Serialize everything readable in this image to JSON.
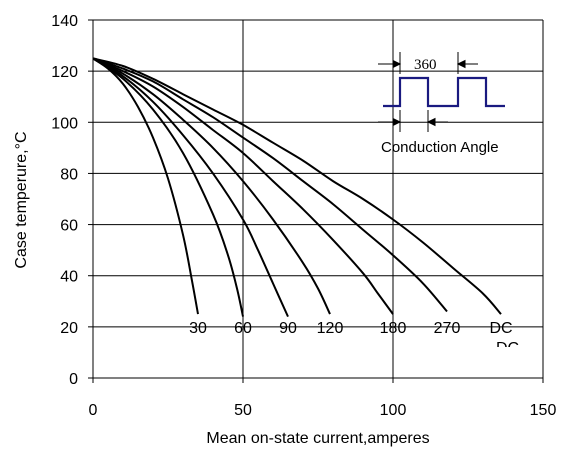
{
  "chart_data": {
    "type": "line",
    "xlabel": "Mean on-state current,amperes",
    "ylabel": "Case temperure,°C",
    "xlim": [
      0,
      150
    ],
    "ylim": [
      0,
      140
    ],
    "xticks": [
      0,
      50,
      100,
      150
    ],
    "yticks": [
      0,
      20,
      40,
      60,
      80,
      100,
      120,
      140
    ],
    "grid": true,
    "series": [
      {
        "name": "30",
        "points": [
          [
            0,
            125
          ],
          [
            5,
            121
          ],
          [
            10,
            115
          ],
          [
            15,
            106
          ],
          [
            20,
            94
          ],
          [
            25,
            78
          ],
          [
            30,
            56
          ],
          [
            33,
            38
          ],
          [
            35,
            25
          ]
        ]
      },
      {
        "name": "60",
        "points": [
          [
            0,
            125
          ],
          [
            10,
            117
          ],
          [
            20,
            105
          ],
          [
            30,
            88
          ],
          [
            40,
            64
          ],
          [
            45,
            48
          ],
          [
            48,
            35
          ],
          [
            50,
            24
          ]
        ]
      },
      {
        "name": "90",
        "points": [
          [
            0,
            125
          ],
          [
            10,
            118
          ],
          [
            20,
            108
          ],
          [
            30,
            95
          ],
          [
            40,
            80
          ],
          [
            50,
            62
          ],
          [
            55,
            50
          ],
          [
            60,
            37
          ],
          [
            65,
            24
          ]
        ]
      },
      {
        "name": "120",
        "points": [
          [
            0,
            125
          ],
          [
            10,
            119
          ],
          [
            20,
            111
          ],
          [
            30,
            101
          ],
          [
            40,
            90
          ],
          [
            50,
            77
          ],
          [
            60,
            62
          ],
          [
            70,
            45
          ],
          [
            75,
            35
          ],
          [
            79,
            25
          ]
        ]
      },
      {
        "name": "180",
        "points": [
          [
            0,
            125
          ],
          [
            10,
            120
          ],
          [
            20,
            114
          ],
          [
            30,
            106
          ],
          [
            40,
            97
          ],
          [
            50,
            88
          ],
          [
            60,
            77
          ],
          [
            70,
            66
          ],
          [
            80,
            54
          ],
          [
            90,
            41
          ],
          [
            95,
            33
          ],
          [
            100,
            25
          ]
        ]
      },
      {
        "name": "270",
        "points": [
          [
            0,
            125
          ],
          [
            10,
            121
          ],
          [
            20,
            116
          ],
          [
            30,
            109
          ],
          [
            40,
            102
          ],
          [
            50,
            94
          ],
          [
            60,
            86
          ],
          [
            70,
            77
          ],
          [
            80,
            68
          ],
          [
            90,
            58
          ],
          [
            100,
            48
          ],
          [
            110,
            37
          ],
          [
            118,
            26
          ]
        ]
      },
      {
        "name": "DC",
        "points": [
          [
            0,
            125
          ],
          [
            10,
            122
          ],
          [
            20,
            117
          ],
          [
            30,
            111
          ],
          [
            40,
            105
          ],
          [
            50,
            99
          ],
          [
            60,
            92
          ],
          [
            70,
            85
          ],
          [
            80,
            77
          ],
          [
            90,
            70
          ],
          [
            100,
            62
          ],
          [
            110,
            53
          ],
          [
            120,
            43
          ],
          [
            130,
            33
          ],
          [
            136,
            25
          ]
        ]
      }
    ],
    "annotations": {
      "period_label": "360",
      "angle_label": "Conduction Angle",
      "duplicate_label": "DC"
    }
  }
}
